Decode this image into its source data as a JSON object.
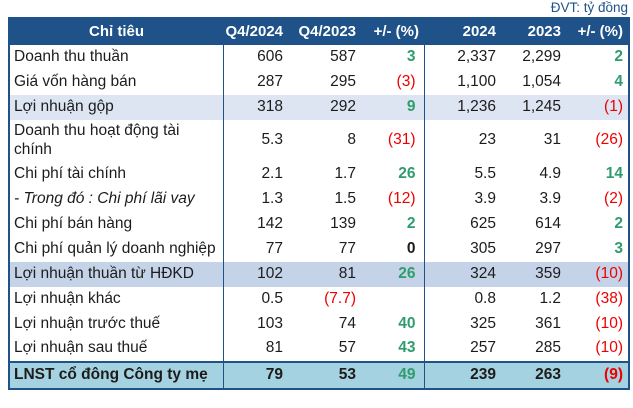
{
  "unit_label": "ĐVT: tỷ đồng",
  "colors": {
    "header_bg": "#1e5289",
    "highlight_row_bg": "#dce5f1",
    "subtotal_row_bg": "#c5d3e8",
    "total_row_bg": "#a5d2e0",
    "positive_green": "#2f9c6e",
    "negative_red": "#ee0000"
  },
  "header": {
    "columns": [
      "Chỉ tiêu",
      "Q4/2024",
      "Q4/2023",
      "+/- (%)",
      "2024",
      "2023",
      "+/- (%)"
    ]
  },
  "rows": [
    {
      "label": "Doanh thu thuần",
      "cells": [
        {
          "v": "606"
        },
        {
          "v": "587"
        },
        {
          "v": "3",
          "c": "g"
        },
        {
          "v": "2,337"
        },
        {
          "v": "2,299"
        },
        {
          "v": "2",
          "c": "g"
        }
      ]
    },
    {
      "label": "Giá vốn hàng bán",
      "cells": [
        {
          "v": "287"
        },
        {
          "v": "295"
        },
        {
          "v": "(3)",
          "c": "r"
        },
        {
          "v": "1,100"
        },
        {
          "v": "1,054"
        },
        {
          "v": "4",
          "c": "g"
        }
      ]
    },
    {
      "label": "Lợi nhuận gộp",
      "style": "highlight",
      "cells": [
        {
          "v": "318"
        },
        {
          "v": "292"
        },
        {
          "v": "9",
          "c": "g"
        },
        {
          "v": "1,236"
        },
        {
          "v": "1,245"
        },
        {
          "v": "(1)",
          "c": "r"
        }
      ]
    },
    {
      "label": "Doanh thu hoạt động tài chính",
      "cells": [
        {
          "v": "5.3"
        },
        {
          "v": "8"
        },
        {
          "v": "(31)",
          "c": "r"
        },
        {
          "v": "23"
        },
        {
          "v": "31"
        },
        {
          "v": "(26)",
          "c": "r"
        }
      ]
    },
    {
      "label": "Chi phí tài chính",
      "cells": [
        {
          "v": "2.1"
        },
        {
          "v": "1.7"
        },
        {
          "v": "26",
          "c": "g"
        },
        {
          "v": "5.5"
        },
        {
          "v": "4.9"
        },
        {
          "v": "14",
          "c": "g"
        }
      ]
    },
    {
      "label": "- Trong đó : Chi phí lãi vay",
      "italic": true,
      "cells": [
        {
          "v": "1.3"
        },
        {
          "v": "1.5"
        },
        {
          "v": "(12)",
          "c": "r"
        },
        {
          "v": "3.9"
        },
        {
          "v": "3.9"
        },
        {
          "v": "(2)",
          "c": "r"
        }
      ]
    },
    {
      "label": "Chi phí bán hàng",
      "cells": [
        {
          "v": "142"
        },
        {
          "v": "139"
        },
        {
          "v": "2",
          "c": "g"
        },
        {
          "v": "625"
        },
        {
          "v": "614"
        },
        {
          "v": "2",
          "c": "g"
        }
      ]
    },
    {
      "label": "Chi phí quản lý doanh nghiệp",
      "cells": [
        {
          "v": "77"
        },
        {
          "v": "77"
        },
        {
          "v": "0",
          "c": "kb"
        },
        {
          "v": "305"
        },
        {
          "v": "297"
        },
        {
          "v": "3",
          "c": "g"
        }
      ]
    },
    {
      "label": "Lợi nhuận thuần từ HĐKD",
      "style": "subtotal",
      "cells": [
        {
          "v": "102"
        },
        {
          "v": "81"
        },
        {
          "v": "26",
          "c": "g"
        },
        {
          "v": "324"
        },
        {
          "v": "359"
        },
        {
          "v": "(10)",
          "c": "r"
        }
      ]
    },
    {
      "label": "Lợi nhuận khác",
      "cells": [
        {
          "v": "0.5"
        },
        {
          "v": "(7.7)",
          "c": "r"
        },
        {
          "v": ""
        },
        {
          "v": "0.8"
        },
        {
          "v": "1.2"
        },
        {
          "v": "(38)",
          "c": "r"
        }
      ]
    },
    {
      "label": "Lợi nhuận trước thuế",
      "cells": [
        {
          "v": "103"
        },
        {
          "v": "74"
        },
        {
          "v": "40",
          "c": "g"
        },
        {
          "v": "325"
        },
        {
          "v": "361"
        },
        {
          "v": "(10)",
          "c": "r"
        }
      ]
    },
    {
      "label": "Lợi nhuận sau thuế",
      "cells": [
        {
          "v": "81"
        },
        {
          "v": "57"
        },
        {
          "v": "43",
          "c": "g"
        },
        {
          "v": "257"
        },
        {
          "v": "285"
        },
        {
          "v": "(10)",
          "c": "r"
        }
      ]
    },
    {
      "label": "LNST cổ đông Công ty mẹ",
      "style": "total",
      "cells": [
        {
          "v": "79"
        },
        {
          "v": "53"
        },
        {
          "v": "49",
          "c": "g"
        },
        {
          "v": "239"
        },
        {
          "v": "263"
        },
        {
          "v": "(9)",
          "c": "r"
        }
      ]
    }
  ]
}
